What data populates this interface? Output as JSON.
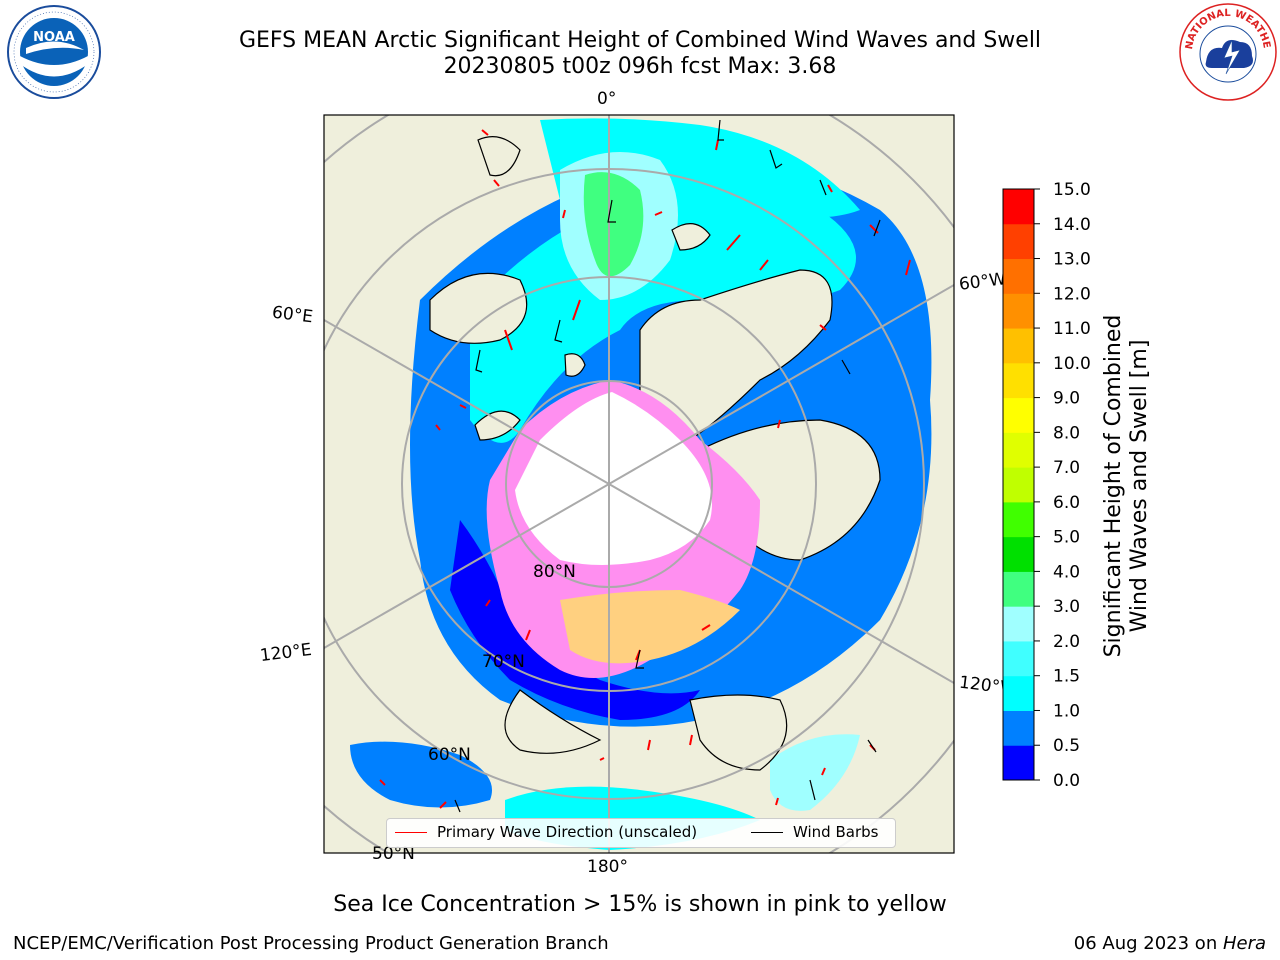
{
  "title": {
    "line1": "GEFS MEAN Arctic Significant Height of Combined Wind Waves and Swell",
    "line2": "20230805 t00z 096h fcst   Max: 3.68"
  },
  "logos": {
    "noaa": "NOAA",
    "nws": "NATIONAL WEATHER SERVICE"
  },
  "map": {
    "projection": "north-polar-stereographic",
    "longitude_labels": [
      "0°",
      "60°W",
      "120°W",
      "180°",
      "120°E",
      "60°E"
    ],
    "latitude_labels": [
      "80°N",
      "70°N",
      "60°N",
      "50°N"
    ],
    "colors": {
      "land": "#efefdc",
      "ice_interior": "#ffffff",
      "ice_edge": "#ff8ff0",
      "wave_0_0.5": "#0000ff",
      "wave_0.5_1.0": "#0080ff",
      "wave_1.0_1.5": "#00ffff",
      "wave_1.5_2.0": "#40ffff",
      "wave_2.0_3.0": "#a0ffff",
      "wave_3.0_4.0": "#40ff80"
    }
  },
  "legend": {
    "primary_wave": "Primary Wave Direction (unscaled)",
    "wind_barbs": "Wind Barbs",
    "primary_color": "#ff0000",
    "barb_color": "#000000"
  },
  "colorbar": {
    "label_line1": "Significant Height of Combined",
    "label_line2": "Wind Waves and Swell [m]",
    "ticks": [
      "0.0",
      "0.5",
      "1.0",
      "1.5",
      "2.0",
      "3.0",
      "4.0",
      "5.0",
      "6.0",
      "7.0",
      "8.0",
      "9.0",
      "10.0",
      "11.0",
      "12.0",
      "13.0",
      "14.0",
      "15.0"
    ],
    "colors": [
      "#0000ff",
      "#0080ff",
      "#00ffff",
      "#40ffff",
      "#a0ffff",
      "#40ff80",
      "#00e000",
      "#40ff00",
      "#c0ff00",
      "#e0ff00",
      "#ffff00",
      "#ffe000",
      "#ffc000",
      "#ff9000",
      "#ff7000",
      "#ff4000",
      "#ff0000"
    ]
  },
  "subtitle": "Sea Ice Concentration > 15% is shown in pink to yellow",
  "footer": {
    "left": "NCEP/EMC/Verification Post Processing Product Generation Branch",
    "date": "06 Aug 2023 on ",
    "host": "Hera"
  }
}
